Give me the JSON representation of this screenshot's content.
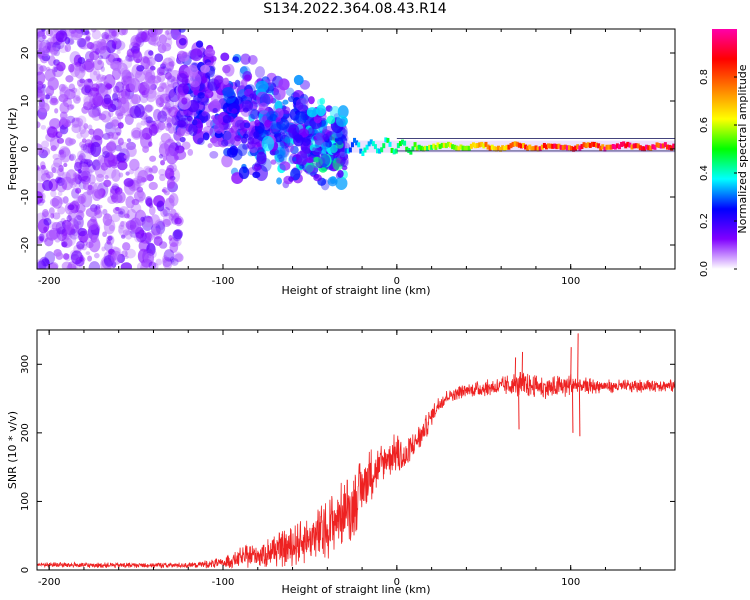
{
  "figure": {
    "title": "S134.2022.364.08.43.R14"
  },
  "chart_data": [
    {
      "type": "heatmap",
      "xlabel": "Height of straight line (km)",
      "ylabel": "Frequency (Hz)",
      "xlim": [
        -207,
        160
      ],
      "ylim": [
        -25,
        25
      ],
      "xticks": [
        "-200",
        "-100",
        "0",
        "100"
      ],
      "xtick_values": [
        -200,
        -100,
        0,
        100
      ],
      "yticks": [
        "-20",
        "-10",
        "0",
        "10",
        "20"
      ],
      "ytick_values": [
        -20,
        -10,
        0,
        10,
        20
      ],
      "colorbar": {
        "label": "Normalized spectral amplitude",
        "range": [
          0,
          1
        ],
        "ticks": [
          "0.0",
          "0.2",
          "0.4",
          "0.6",
          "0.8"
        ],
        "tick_values": [
          0.0,
          0.2,
          0.4,
          0.6,
          0.8
        ],
        "colormap": [
          "#ffffff",
          "#8000ff",
          "#0000ff",
          "#00ffff",
          "#00ff00",
          "#ffff00",
          "#ff8000",
          "#ff0000",
          "#ff00aa"
        ]
      },
      "regions": [
        {
          "x": [
            -207,
            -125
          ],
          "freq_spread": [
            -25,
            25
          ],
          "amplitude": [
            0.02,
            0.12
          ]
        },
        {
          "x": [
            -125,
            -30
          ],
          "freq_center": [
            12,
            0
          ],
          "freq_spread_hz": [
            10,
            6
          ],
          "amplitude": [
            0.1,
            0.4
          ]
        },
        {
          "x": [
            -30,
            160
          ],
          "freq_center": 0.5,
          "freq_spread_hz": 1.5,
          "amplitude": [
            0.35,
            0.95
          ]
        }
      ]
    },
    {
      "type": "line",
      "xlabel": "Height of straight line (km)",
      "ylabel": "SNR (10 * v/v)",
      "xlim": [
        -207,
        160
      ],
      "ylim": [
        0,
        350
      ],
      "xticks": [
        "-200",
        "-100",
        "0",
        "100"
      ],
      "xtick_values": [
        -200,
        -100,
        0,
        100
      ],
      "yticks": [
        "0",
        "100",
        "200",
        "300"
      ],
      "ytick_values": [
        0,
        100,
        200,
        300
      ],
      "color": "#ee2222",
      "series": [
        {
          "x": [
            -207,
            -180,
            -160,
            -140,
            -120,
            -100,
            -90,
            -80,
            -70,
            -60,
            -50,
            -40,
            -35,
            -30,
            -25,
            -20,
            -15,
            -10,
            -5,
            0,
            5,
            10,
            15,
            20,
            25,
            30,
            40,
            50,
            60,
            70,
            80,
            90,
            100,
            110,
            120,
            130,
            140,
            150,
            160
          ],
          "values": [
            8,
            7,
            7,
            7,
            7,
            10,
            18,
            22,
            28,
            35,
            45,
            60,
            75,
            85,
            95,
            120,
            140,
            150,
            165,
            170,
            160,
            185,
            200,
            225,
            245,
            255,
            262,
            265,
            268,
            270,
            268,
            265,
            270,
            268,
            268,
            268,
            268,
            270,
            268
          ],
          "noise": [
            4,
            4,
            4,
            4,
            4,
            8,
            15,
            20,
            25,
            30,
            35,
            45,
            45,
            50,
            50,
            45,
            40,
            35,
            30,
            30,
            25,
            22,
            20,
            15,
            12,
            10,
            10,
            12,
            14,
            20,
            16,
            18,
            18,
            12,
            10,
            10,
            10,
            10,
            10
          ]
        }
      ],
      "spikes": [
        {
          "x": 72,
          "value": 318
        },
        {
          "x": 68,
          "value": 310
        },
        {
          "x": 70,
          "value": 205
        },
        {
          "x": 100,
          "value": 325
        },
        {
          "x": 104,
          "value": 345
        },
        {
          "x": 105,
          "value": 195
        },
        {
          "x": 101,
          "value": 200
        }
      ]
    }
  ]
}
